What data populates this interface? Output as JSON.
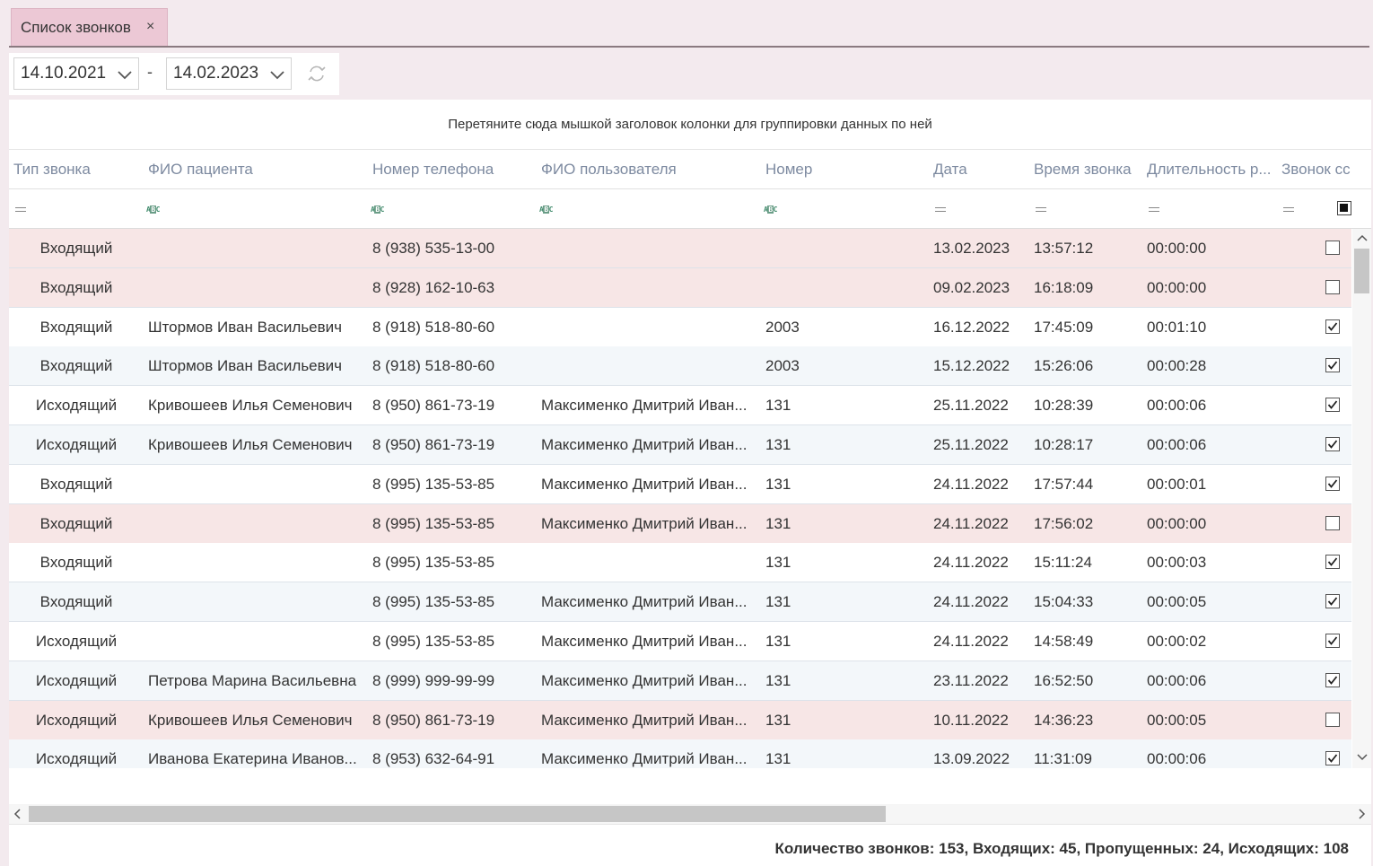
{
  "tab": {
    "title": "Список звонков",
    "close": "×"
  },
  "toolbar": {
    "date_from": "14.10.2021",
    "date_to": "14.02.2023",
    "separator": "-"
  },
  "grid": {
    "group_hint": "Перетяните сюда мышкой заголовок колонки для группировки данных по ней",
    "columns": {
      "type": "Тип звонка",
      "patient": "ФИО пациента",
      "phone": "Номер телефона",
      "user": "ФИО пользователя",
      "number": "Номер",
      "date": "Дата",
      "time": "Время звонка",
      "duration": "Длительность р...",
      "connected": "Звонок сс"
    },
    "rows": [
      {
        "type": "Входящий",
        "patient": "",
        "phone": "8 (938) 535-13-00",
        "user": "",
        "number": "",
        "date": "13.02.2023",
        "time": "13:57:12",
        "duration": "00:00:00",
        "connected": false
      },
      {
        "type": "Входящий",
        "patient": "",
        "phone": "8 (928) 162-10-63",
        "user": "",
        "number": "",
        "date": "09.02.2023",
        "time": "16:18:09",
        "duration": "00:00:00",
        "connected": false
      },
      {
        "type": "Входящий",
        "patient": "Штормов Иван Васильевич",
        "phone": "8 (918) 518-80-60",
        "user": "",
        "number": "2003",
        "date": "16.12.2022",
        "time": "17:45:09",
        "duration": "00:01:10",
        "connected": true
      },
      {
        "type": "Входящий",
        "patient": "Штормов Иван Васильевич",
        "phone": "8 (918) 518-80-60",
        "user": "",
        "number": "2003",
        "date": "15.12.2022",
        "time": "15:26:06",
        "duration": "00:00:28",
        "connected": true
      },
      {
        "type": "Исходящий",
        "patient": "Кривошеев Илья Семенович",
        "phone": "8 (950) 861-73-19",
        "user": "Максименко Дмитрий Иван...",
        "number": "131",
        "date": "25.11.2022",
        "time": "10:28:39",
        "duration": "00:00:06",
        "connected": true
      },
      {
        "type": "Исходящий",
        "patient": "Кривошеев Илья Семенович",
        "phone": "8 (950) 861-73-19",
        "user": "Максименко Дмитрий Иван...",
        "number": "131",
        "date": "25.11.2022",
        "time": "10:28:17",
        "duration": "00:00:06",
        "connected": true
      },
      {
        "type": "Входящий",
        "patient": "",
        "phone": "8 (995) 135-53-85",
        "user": "Максименко Дмитрий Иван...",
        "number": "131",
        "date": "24.11.2022",
        "time": "17:57:44",
        "duration": "00:00:01",
        "connected": true
      },
      {
        "type": "Входящий",
        "patient": "",
        "phone": "8 (995) 135-53-85",
        "user": "Максименко Дмитрий Иван...",
        "number": "131",
        "date": "24.11.2022",
        "time": "17:56:02",
        "duration": "00:00:00",
        "connected": false
      },
      {
        "type": "Входящий",
        "patient": "",
        "phone": "8 (995) 135-53-85",
        "user": "",
        "number": "131",
        "date": "24.11.2022",
        "time": "15:11:24",
        "duration": "00:00:03",
        "connected": true
      },
      {
        "type": "Входящий",
        "patient": "",
        "phone": "8 (995) 135-53-85",
        "user": "Максименко Дмитрий Иван...",
        "number": "131",
        "date": "24.11.2022",
        "time": "15:04:33",
        "duration": "00:00:05",
        "connected": true
      },
      {
        "type": "Исходящий",
        "patient": "",
        "phone": "8 (995) 135-53-85",
        "user": "Максименко Дмитрий Иван...",
        "number": "131",
        "date": "24.11.2022",
        "time": "14:58:49",
        "duration": "00:00:02",
        "connected": true
      },
      {
        "type": "Исходящий",
        "patient": "Петрова Марина Васильевна",
        "phone": "8 (999) 999-99-99",
        "user": "Максименко Дмитрий Иван...",
        "number": "131",
        "date": "23.11.2022",
        "time": "16:52:50",
        "duration": "00:00:06",
        "connected": true
      },
      {
        "type": "Исходящий",
        "patient": "Кривошеев Илья Семенович",
        "phone": "8 (950) 861-73-19",
        "user": "Максименко Дмитрий Иван...",
        "number": "131",
        "date": "10.11.2022",
        "time": "14:36:23",
        "duration": "00:00:05",
        "connected": false
      },
      {
        "type": "Исходящий",
        "patient": "Иванова Екатерина Иванов...",
        "phone": "8 (953) 632-64-91",
        "user": "Максименко Дмитрий Иван...",
        "number": "131",
        "date": "13.09.2022",
        "time": "11:31:09",
        "duration": "00:00:06",
        "connected": true
      }
    ],
    "summary": "Количество звонков: 153, Входящих: 45, Пропущенных: 24, Исходящих: 108"
  },
  "icons": {
    "close": "close-icon",
    "dropdown": "chevron-down-icon",
    "refresh": "refresh-icon",
    "filter_equals": "equals-filter-icon",
    "filter_text": "text-filter-icon"
  },
  "colors": {
    "tab_active": "#ecc8d5",
    "missed_row": "#f7e6e6",
    "alt_row": "#f3f7fa",
    "header_text": "#7d8aa0",
    "background": "#f3eaee"
  }
}
